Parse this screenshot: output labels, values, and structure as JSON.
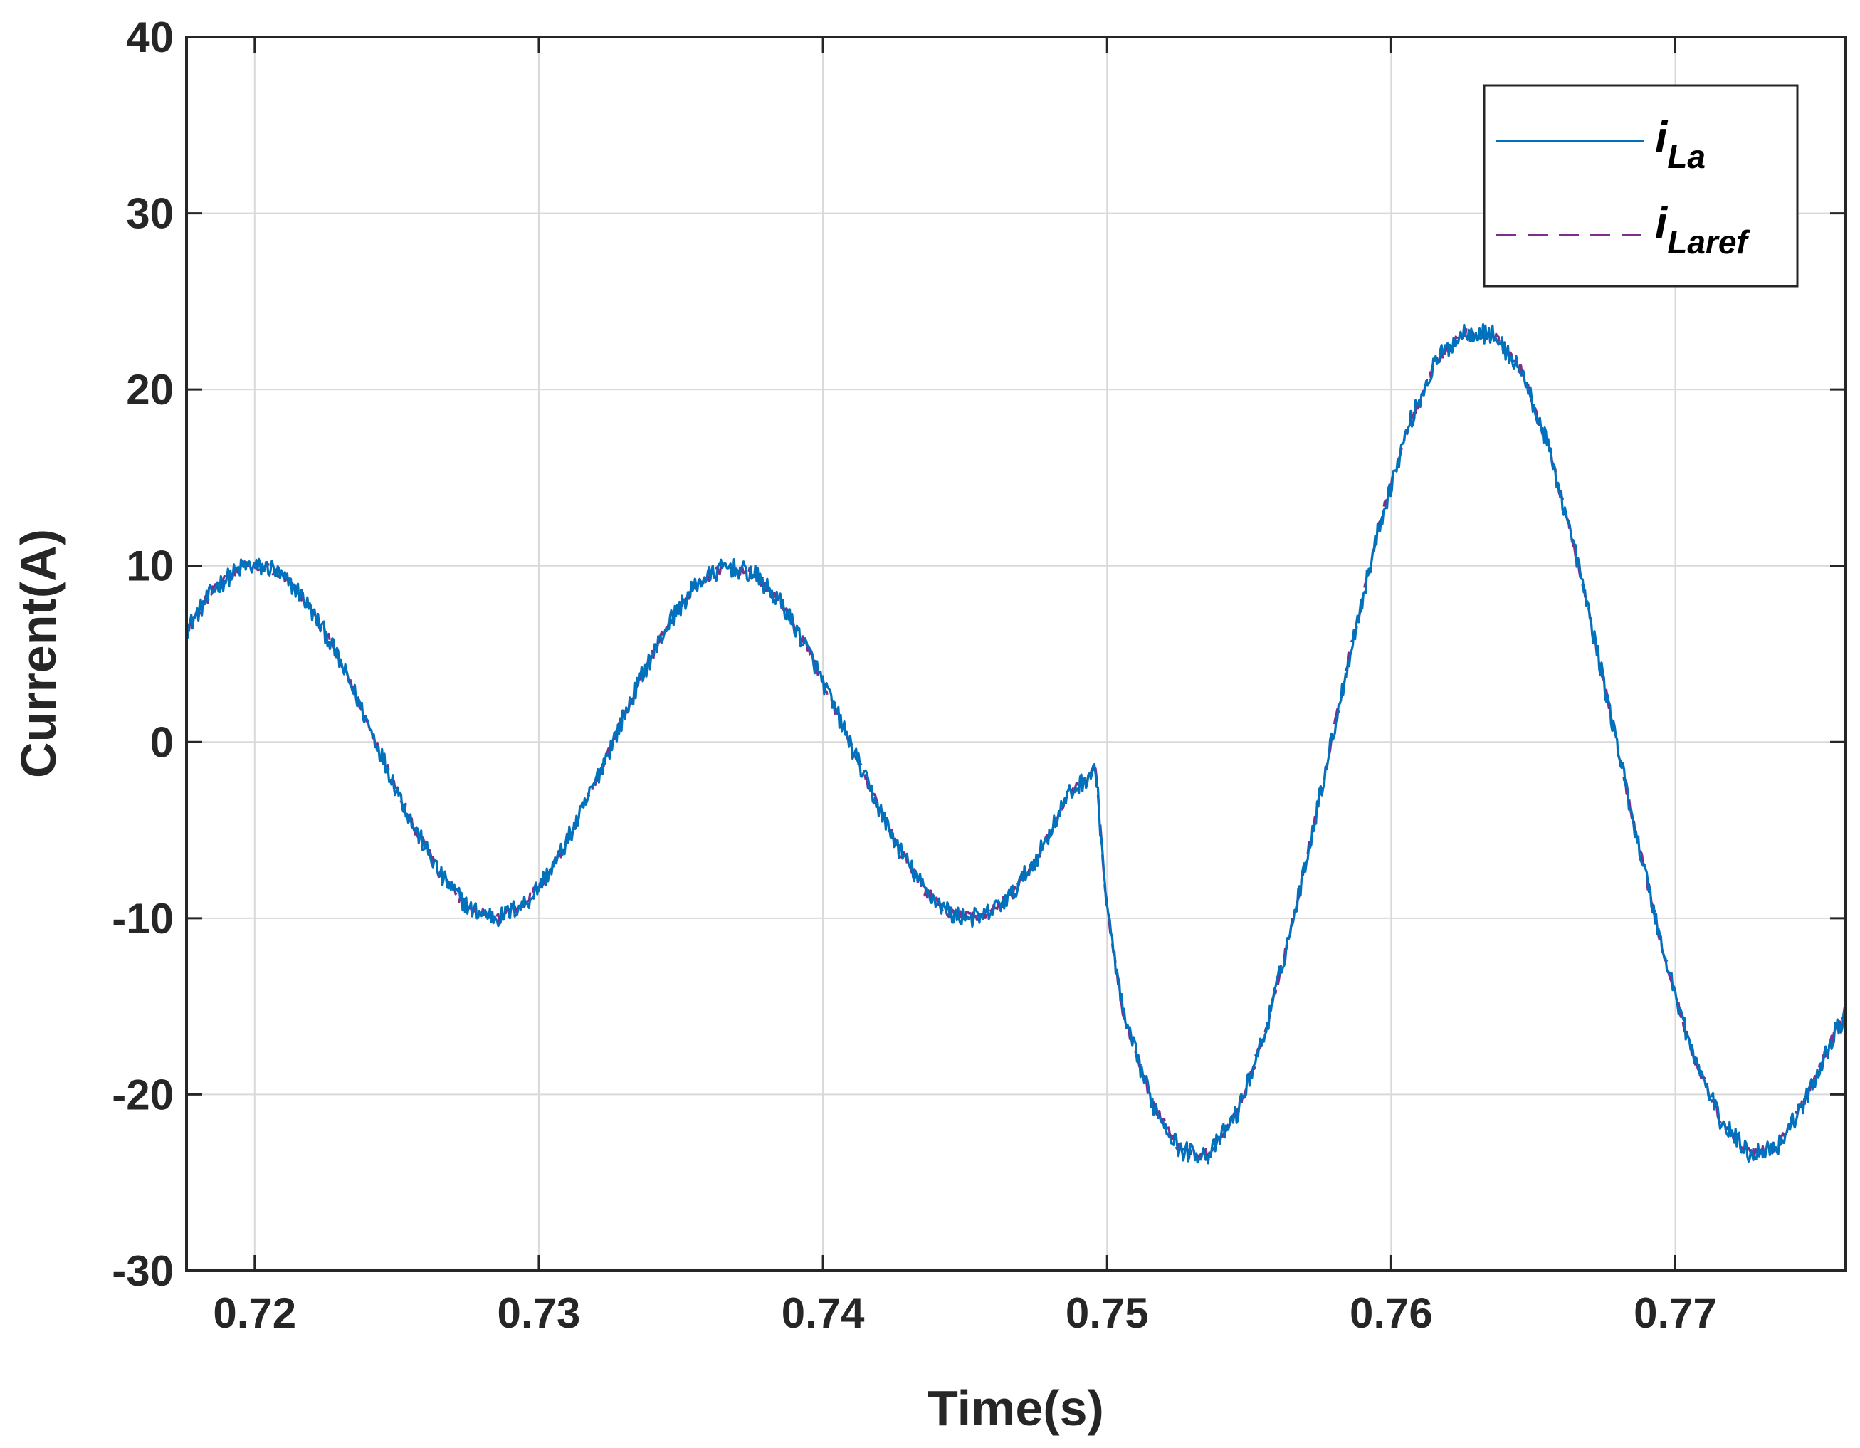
{
  "chart_data": {
    "type": "line",
    "title": "",
    "xlabel": "Time(s)",
    "ylabel": "Current(A)",
    "xlim": [
      0.7176,
      0.776
    ],
    "ylim": [
      -30,
      40
    ],
    "xticks": [
      0.72,
      0.73,
      0.74,
      0.75,
      0.76,
      0.77
    ],
    "xtick_labels": [
      "0.72",
      "0.73",
      "0.74",
      "0.75",
      "0.76",
      "0.77"
    ],
    "yticks": [
      -30,
      -20,
      -10,
      0,
      10,
      20,
      30,
      40
    ],
    "ytick_labels": [
      "-30",
      "-20",
      "-10",
      "0",
      "10",
      "20",
      "30",
      "40"
    ],
    "grid": true,
    "legend_position": "top-right",
    "series": [
      {
        "name_main": "i",
        "name_sub": "La",
        "color": "#0072BD",
        "style": "solid",
        "noise": 0.55,
        "x": [
          0.7176,
          0.7186,
          0.7196,
          0.7206,
          0.7216,
          0.7226,
          0.7236,
          0.7246,
          0.7256,
          0.7266,
          0.7276,
          0.7286,
          0.7296,
          0.7306,
          0.7316,
          0.7326,
          0.7336,
          0.7346,
          0.7356,
          0.7366,
          0.7376,
          0.7386,
          0.7396,
          0.7406,
          0.7416,
          0.7426,
          0.7436,
          0.7446,
          0.7456,
          0.7466,
          0.7476,
          0.7486,
          0.7496,
          0.75,
          0.7506,
          0.7516,
          0.7526,
          0.7536,
          0.7546,
          0.7556,
          0.7566,
          0.7576,
          0.7586,
          0.7596,
          0.7606,
          0.7616,
          0.7626,
          0.7636,
          0.7646,
          0.7656,
          0.7666,
          0.7676,
          0.7686,
          0.7696,
          0.7706,
          0.7716,
          0.7726,
          0.7736,
          0.7746,
          0.7756,
          0.776
        ],
        "y": [
          6.37,
          8.76,
          9.98,
          9.86,
          8.44,
          5.87,
          2.49,
          -1.25,
          -4.82,
          -7.71,
          -9.51,
          -9.98,
          -9.05,
          -6.84,
          -3.68,
          0,
          3.68,
          6.84,
          9.05,
          9.98,
          9.51,
          7.71,
          4.82,
          1.25,
          -2.49,
          -5.87,
          -8.44,
          -9.86,
          -9.98,
          -8.76,
          -6.37,
          -3.09,
          -1.56,
          -9.5,
          -15.7,
          -20.5,
          -23.2,
          -23.4,
          -21.0,
          -16.3,
          -9.76,
          -2.24,
          5.38,
          12.39,
          17.9,
          21.7,
          23.3,
          23.1,
          21.0,
          16.4,
          10.0,
          2.52,
          -5.06,
          -12.05,
          -17.63,
          -21.5,
          -23.35,
          -22.95,
          -20.3,
          -16.56,
          -15.5
        ]
      },
      {
        "name_main": "i",
        "name_sub": "Laref",
        "color": "#7E2F8E",
        "style": "dashed",
        "noise": 0.3,
        "x": [
          0.7176,
          0.7186,
          0.7196,
          0.7206,
          0.7216,
          0.7226,
          0.7236,
          0.7246,
          0.7256,
          0.7266,
          0.7276,
          0.7286,
          0.7296,
          0.7306,
          0.7316,
          0.7326,
          0.7336,
          0.7346,
          0.7356,
          0.7366,
          0.7376,
          0.7386,
          0.7396,
          0.7406,
          0.7416,
          0.7426,
          0.7436,
          0.7446,
          0.7456,
          0.7466,
          0.7476,
          0.7486,
          0.7496,
          0.75,
          0.7506,
          0.7516,
          0.7526,
          0.7536,
          0.7546,
          0.7556,
          0.7566,
          0.7576,
          0.7586,
          0.7596,
          0.7606,
          0.7616,
          0.7626,
          0.7636,
          0.7646,
          0.7656,
          0.7666,
          0.7676,
          0.7686,
          0.7696,
          0.7706,
          0.7716,
          0.7726,
          0.7736,
          0.7746,
          0.7756,
          0.776
        ],
        "y": [
          6.37,
          8.76,
          9.98,
          9.86,
          8.44,
          5.87,
          2.49,
          -1.25,
          -4.82,
          -7.71,
          -9.51,
          -9.98,
          -9.05,
          -6.84,
          -3.68,
          0,
          3.68,
          6.84,
          9.05,
          9.98,
          9.51,
          7.71,
          4.82,
          1.25,
          -2.49,
          -5.87,
          -8.44,
          -9.86,
          -9.98,
          -8.76,
          -6.37,
          -3.09,
          -1.56,
          -9.5,
          -15.7,
          -20.5,
          -23.2,
          -23.4,
          -21.0,
          -16.3,
          -9.76,
          -2.24,
          5.38,
          12.39,
          17.9,
          21.7,
          23.3,
          23.1,
          21.0,
          16.4,
          10.0,
          2.52,
          -5.06,
          -12.05,
          -17.63,
          -21.5,
          -23.35,
          -22.95,
          -20.3,
          -16.56,
          -15.5
        ]
      }
    ]
  }
}
